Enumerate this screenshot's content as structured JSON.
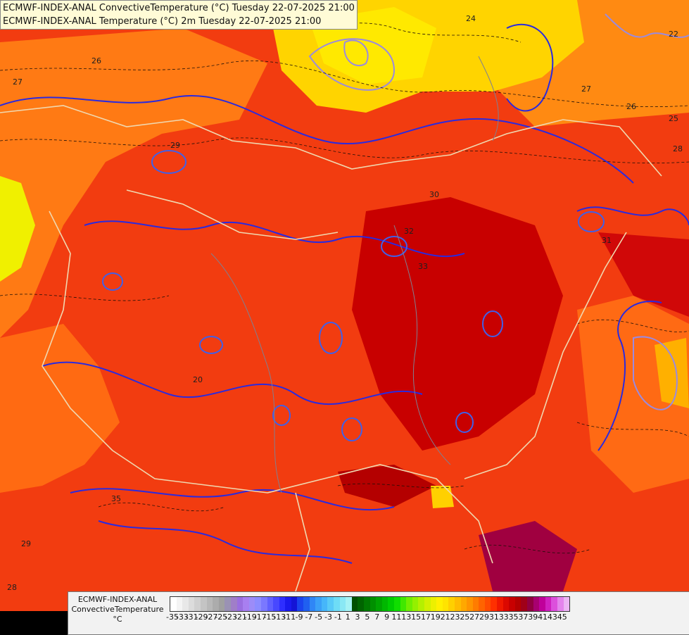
{
  "header": {
    "line1": "ECMWF-INDEX-ANAL ConvectiveTemperature (°C) Tuesday 22-07-2025 21:00",
    "line2": "ECMWF-INDEX-ANAL Temperature (°C) 2m Tuesday 22-07-2025 21:00"
  },
  "legend": {
    "title_line1": "ECMWF-INDEX-ANAL",
    "title_line2": "ConvectiveTemperature",
    "unit": "°C",
    "ticks": [
      "-35",
      "-33",
      "-31",
      "-29",
      "-27",
      "-25",
      "-23",
      "-21",
      "-19",
      "-17",
      "-15",
      "-13",
      "-11",
      "-9",
      "-7",
      "-5",
      "-3",
      "-1",
      "1",
      "3",
      "5",
      "7",
      "9",
      "11",
      "13",
      "15",
      "17",
      "19",
      "21",
      "23",
      "25",
      "27",
      "29",
      "31",
      "33",
      "35",
      "37",
      "39",
      "41",
      "43",
      "45"
    ],
    "colors": [
      "#ffffff",
      "#f4f4f4",
      "#e8e8e8",
      "#dcdcdc",
      "#d0d0d0",
      "#c4c4c4",
      "#b8b8b8",
      "#acacac",
      "#a0a0a0",
      "#9a92b4",
      "#a07ec8",
      "#9a6ee0",
      "#a87ff0",
      "#9c8cf8",
      "#8c8cff",
      "#7a78ff",
      "#6060ff",
      "#4848ff",
      "#2e2eff",
      "#1a1aee",
      "#1414d6",
      "#1a44ee",
      "#2060f0",
      "#2f86f6",
      "#3aa0f8",
      "#46b6fa",
      "#58caf8",
      "#6edcf6",
      "#8ae8f4",
      "#a6f2f4",
      "#005000",
      "#006400",
      "#007a00",
      "#009000",
      "#00a400",
      "#00b800",
      "#00cc00",
      "#10de00",
      "#40e800",
      "#70ee00",
      "#94f000",
      "#b4f000",
      "#d2f000",
      "#ecf000",
      "#fff000",
      "#ffe400",
      "#ffd000",
      "#ffbc00",
      "#ffa800",
      "#ff9400",
      "#ff7c00",
      "#ff6400",
      "#ff4c00",
      "#ff3000",
      "#f01800",
      "#dc0800",
      "#c80000",
      "#b40000",
      "#a00018",
      "#900040",
      "#a80070",
      "#c0009a",
      "#d020c0",
      "#dc50dc",
      "#e484ec",
      "#ecb4f4"
    ]
  },
  "map_labels": [
    "24",
    "25",
    "26",
    "27",
    "28",
    "22",
    "29",
    "30",
    "31",
    "32",
    "33",
    "20",
    "35",
    "28",
    "29",
    "27",
    "26"
  ]
}
